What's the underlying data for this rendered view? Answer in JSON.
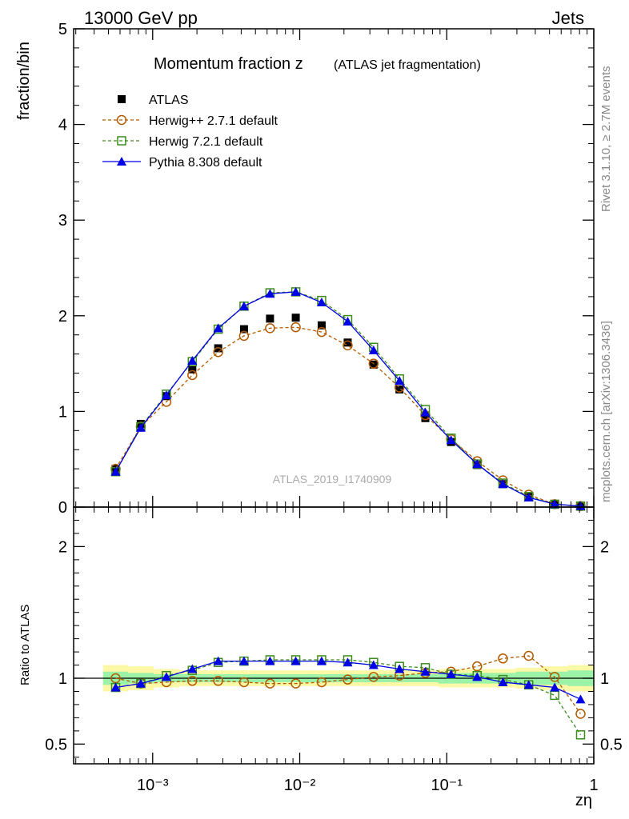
{
  "header": {
    "left": "13000 GeV pp",
    "right": "Jets"
  },
  "side_labels": {
    "rivet": "Rivet 3.1.10, ≥ 2.7M events",
    "mcplots": "mcplots.cern.ch [arXiv:1306.3436]"
  },
  "chart_data": [
    {
      "type": "scatter",
      "title_main": "Momentum fraction z",
      "title_sub": "(ATLAS jet fragmentation)",
      "ylabel": "fraction/bin",
      "xscale": "log",
      "xlim": [
        0.00029,
        1.0
      ],
      "ylim": [
        0,
        5
      ],
      "yticks": [
        0,
        1,
        2,
        3,
        4,
        5
      ],
      "legend_position": "top-left",
      "watermark": "ATLAS_2019_I1740909",
      "x": [
        0.00056,
        0.00083,
        0.00124,
        0.00186,
        0.00279,
        0.00418,
        0.00628,
        0.0094,
        0.0141,
        0.0212,
        0.0318,
        0.0477,
        0.0715,
        0.107,
        0.161,
        0.241,
        0.361,
        0.542,
        0.813
      ],
      "series": [
        {
          "name": "ATLAS",
          "marker": "filled-square",
          "color": "#000000",
          "line": "none",
          "values": [
            0.4,
            0.87,
            1.16,
            1.44,
            1.66,
            1.86,
            1.97,
            1.98,
            1.9,
            1.72,
            1.49,
            1.23,
            0.93,
            0.68,
            0.44,
            0.24,
            0.11,
            0.03,
            0.01
          ]
        },
        {
          "name": "Herwig++ 2.7.1 default",
          "marker": "open-circle",
          "color": "#b35a00",
          "line": "dashed",
          "values": [
            0.4,
            0.84,
            1.1,
            1.38,
            1.62,
            1.79,
            1.87,
            1.88,
            1.83,
            1.69,
            1.5,
            1.25,
            0.96,
            0.71,
            0.48,
            0.28,
            0.13,
            0.03,
            0.01
          ]
        },
        {
          "name": "Herwig 7.2.1 default",
          "marker": "open-square",
          "color": "#3c8c1e",
          "line": "dashed",
          "values": [
            0.37,
            0.84,
            1.18,
            1.52,
            1.86,
            2.1,
            2.24,
            2.25,
            2.16,
            1.96,
            1.67,
            1.34,
            1.02,
            0.72,
            0.45,
            0.25,
            0.11,
            0.03,
            0.01
          ]
        },
        {
          "name": "Pythia 8.308 default",
          "marker": "filled-triangle",
          "color": "#0000e6",
          "line": "solid",
          "values": [
            0.37,
            0.83,
            1.17,
            1.53,
            1.87,
            2.1,
            2.23,
            2.25,
            2.14,
            1.94,
            1.64,
            1.32,
            0.99,
            0.7,
            0.45,
            0.24,
            0.1,
            0.03,
            0.01
          ]
        }
      ]
    },
    {
      "type": "scatter",
      "ylabel": "Ratio to ATLAS",
      "xlabel": "zη",
      "xscale": "log",
      "xlim": [
        0.00029,
        1.0
      ],
      "ylim": [
        0.35,
        2.3
      ],
      "yticks": [
        0.5,
        1,
        2
      ],
      "xtick_labels": [
        "10⁻³",
        "10⁻²",
        "10⁻¹",
        "1"
      ],
      "reference_line": 1,
      "band_outer": [
        0.1,
        0.09,
        0.07,
        0.06,
        0.06,
        0.06,
        0.06,
        0.06,
        0.06,
        0.06,
        0.06,
        0.06,
        0.06,
        0.07,
        0.07,
        0.07,
        0.08,
        0.09,
        0.1
      ],
      "band_inner": [
        0.05,
        0.04,
        0.03,
        0.03,
        0.03,
        0.03,
        0.03,
        0.03,
        0.03,
        0.03,
        0.03,
        0.03,
        0.03,
        0.04,
        0.04,
        0.04,
        0.05,
        0.05,
        0.06
      ],
      "series": [
        {
          "name": "Herwig++ 2.7.1 default",
          "values": [
            1.0,
            0.96,
            0.97,
            0.98,
            0.98,
            0.97,
            0.96,
            0.96,
            0.97,
            0.99,
            1.01,
            1.02,
            1.04,
            1.05,
            1.09,
            1.15,
            1.17,
            1.01,
            0.73
          ]
        },
        {
          "name": "Herwig 7.2.1 default",
          "values": [
            0.93,
            0.96,
            1.02,
            1.06,
            1.12,
            1.13,
            1.14,
            1.14,
            1.14,
            1.14,
            1.12,
            1.09,
            1.08,
            1.03,
            1.02,
            0.99,
            0.95,
            0.87,
            0.57
          ]
        },
        {
          "name": "Pythia 8.308 default",
          "values": [
            0.93,
            0.96,
            1.01,
            1.07,
            1.13,
            1.13,
            1.13,
            1.13,
            1.13,
            1.12,
            1.1,
            1.07,
            1.05,
            1.03,
            1.01,
            0.97,
            0.95,
            0.93,
            0.84
          ]
        }
      ]
    }
  ]
}
